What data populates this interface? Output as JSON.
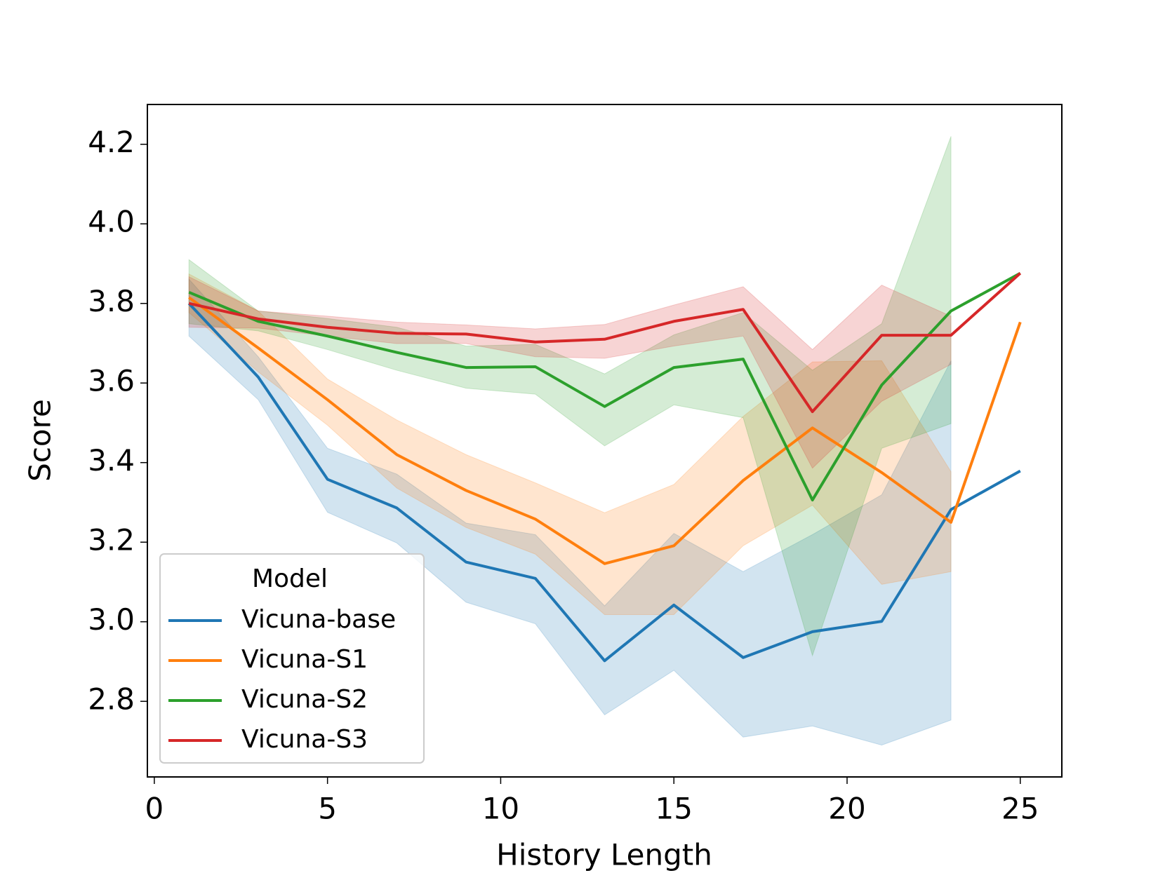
{
  "chart_data": {
    "type": "line",
    "xlabel": "History Length",
    "ylabel": "Score",
    "legend_title": "Model",
    "legend": "lower left",
    "x": [
      1,
      3,
      5,
      7,
      9,
      11,
      13,
      15,
      17,
      19,
      21,
      23,
      25
    ],
    "xlim": [
      -0.2,
      26.2
    ],
    "xticks": [
      0,
      5,
      10,
      15,
      20,
      25
    ],
    "ylim": [
      2.61,
      4.3
    ],
    "yticks": [
      2.8,
      {
        "value": 3,
        "label": "3.0"
      },
      3.2,
      3.4,
      3.6,
      3.8,
      {
        "value": 4,
        "label": "4.0"
      },
      4.2
    ],
    "band_alpha": 0.2,
    "series": [
      {
        "name": "Vicuna-base",
        "color": "#1f77b4",
        "values": [
          3.8,
          3.615,
          3.358,
          3.286,
          3.15,
          3.109,
          2.902,
          3.042,
          2.91,
          2.975,
          3.001,
          3.282,
          3.379
        ],
        "upper": [
          3.861,
          3.666,
          3.436,
          3.371,
          3.248,
          3.219,
          3.04,
          3.222,
          3.126,
          3.219,
          3.319,
          3.656,
          null
        ],
        "lower": [
          3.718,
          3.558,
          3.275,
          3.198,
          3.049,
          2.995,
          2.766,
          2.878,
          2.71,
          2.738,
          2.69,
          2.753,
          null
        ]
      },
      {
        "name": "Vicuna-S1",
        "color": "#ff7f0e",
        "values": [
          3.815,
          3.688,
          3.558,
          3.42,
          3.33,
          3.258,
          3.146,
          3.191,
          3.355,
          3.487,
          3.375,
          3.25,
          3.753
        ],
        "upper": [
          3.874,
          3.781,
          3.61,
          3.507,
          3.42,
          3.349,
          3.274,
          3.345,
          3.516,
          3.653,
          3.656,
          3.377,
          null
        ],
        "lower": [
          3.777,
          3.628,
          3.494,
          3.336,
          3.237,
          3.17,
          3.018,
          3.018,
          3.191,
          3.293,
          3.094,
          3.126,
          null
        ]
      },
      {
        "name": "Vicuna-S2",
        "color": "#2ca02c",
        "values": [
          3.828,
          3.755,
          3.718,
          3.677,
          3.639,
          3.641,
          3.541,
          3.639,
          3.66,
          3.306,
          3.595,
          3.781,
          3.876
        ],
        "upper": [
          3.91,
          3.781,
          3.762,
          3.74,
          3.693,
          3.697,
          3.623,
          3.721,
          3.777,
          3.632,
          3.749,
          4.22,
          null
        ],
        "lower": [
          3.749,
          3.731,
          3.684,
          3.632,
          3.587,
          3.572,
          3.442,
          3.545,
          3.513,
          2.915,
          3.436,
          3.498,
          null
        ]
      },
      {
        "name": "Vicuna-S3",
        "color": "#d62728",
        "values": [
          3.8,
          3.761,
          3.74,
          3.725,
          3.723,
          3.703,
          3.71,
          3.755,
          3.785,
          3.528,
          3.72,
          3.72,
          3.876
        ],
        "upper": [
          3.867,
          3.781,
          3.768,
          3.753,
          3.746,
          3.736,
          3.747,
          3.796,
          3.842,
          3.684,
          3.846,
          3.768,
          null
        ],
        "lower": [
          3.74,
          3.738,
          3.718,
          3.699,
          3.699,
          3.666,
          3.662,
          3.693,
          3.718,
          3.386,
          3.554,
          3.647,
          null
        ]
      }
    ]
  }
}
